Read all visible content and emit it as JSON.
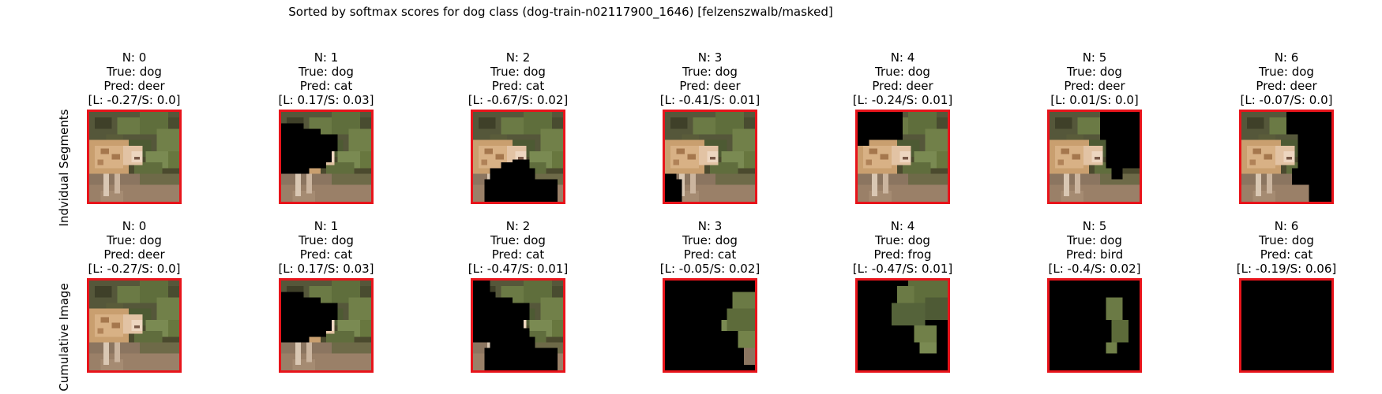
{
  "figure": {
    "title": "Sorted by softmax scores for dog class (dog-train-n02117900_1646) [felzenszwalb/masked]",
    "frame_color": "#e8141b"
  },
  "rows": [
    {
      "label": "Indvidual Segments",
      "panels": [
        {
          "n": "N: 0",
          "true_label": "True: dog",
          "pred": "Pred: deer",
          "scores": "[L: -0.27/S: 0.0]",
          "mask": "none"
        },
        {
          "n": "N: 1",
          "true_label": "True: dog",
          "pred": "Pred: cat",
          "scores": "[L: 0.17/S: 0.03]",
          "mask": "left-blob"
        },
        {
          "n": "N: 2",
          "true_label": "True: dog",
          "pred": "Pred: cat",
          "scores": "[L: -0.67/S: 0.02]",
          "mask": "bottom-blob"
        },
        {
          "n": "N: 3",
          "true_label": "True: dog",
          "pred": "Pred: deer",
          "scores": "[L: -0.41/S: 0.01]",
          "mask": "bottom-left"
        },
        {
          "n": "N: 4",
          "true_label": "True: dog",
          "pred": "Pred: deer",
          "scores": "[L: -0.24/S: 0.01]",
          "mask": "top-left"
        },
        {
          "n": "N: 5",
          "true_label": "True: dog",
          "pred": "Pred: deer",
          "scores": "[L: 0.01/S: 0.0]",
          "mask": "top-right"
        },
        {
          "n": "N: 6",
          "true_label": "True: dog",
          "pred": "Pred: deer",
          "scores": "[L: -0.07/S: 0.0]",
          "mask": "right-side"
        }
      ]
    },
    {
      "label": "Cumulative Image",
      "panels": [
        {
          "n": "N: 0",
          "true_label": "True: dog",
          "pred": "Pred: deer",
          "scores": "[L: -0.27/S: 0.0]",
          "mask": "none"
        },
        {
          "n": "N: 1",
          "true_label": "True: dog",
          "pred": "Pred: cat",
          "scores": "[L: 0.17/S: 0.03]",
          "mask": "left-blob"
        },
        {
          "n": "N: 2",
          "true_label": "True: dog",
          "pred": "Pred: cat",
          "scores": "[L: -0.47/S: 0.01]",
          "mask": "cum-2"
        },
        {
          "n": "N: 3",
          "true_label": "True: dog",
          "pred": "Pred: cat",
          "scores": "[L: -0.05/S: 0.02]",
          "mask": "cum-3"
        },
        {
          "n": "N: 4",
          "true_label": "True: dog",
          "pred": "Pred: frog",
          "scores": "[L: -0.47/S: 0.01]",
          "mask": "cum-4"
        },
        {
          "n": "N: 5",
          "true_label": "True: dog",
          "pred": "Pred: bird",
          "scores": "[L: -0.4/S: 0.02]",
          "mask": "cum-5"
        },
        {
          "n": "N: 6",
          "true_label": "True: dog",
          "pred": "Pred: cat",
          "scores": "[L: -0.19/S: 0.06]",
          "mask": "all"
        }
      ]
    }
  ]
}
